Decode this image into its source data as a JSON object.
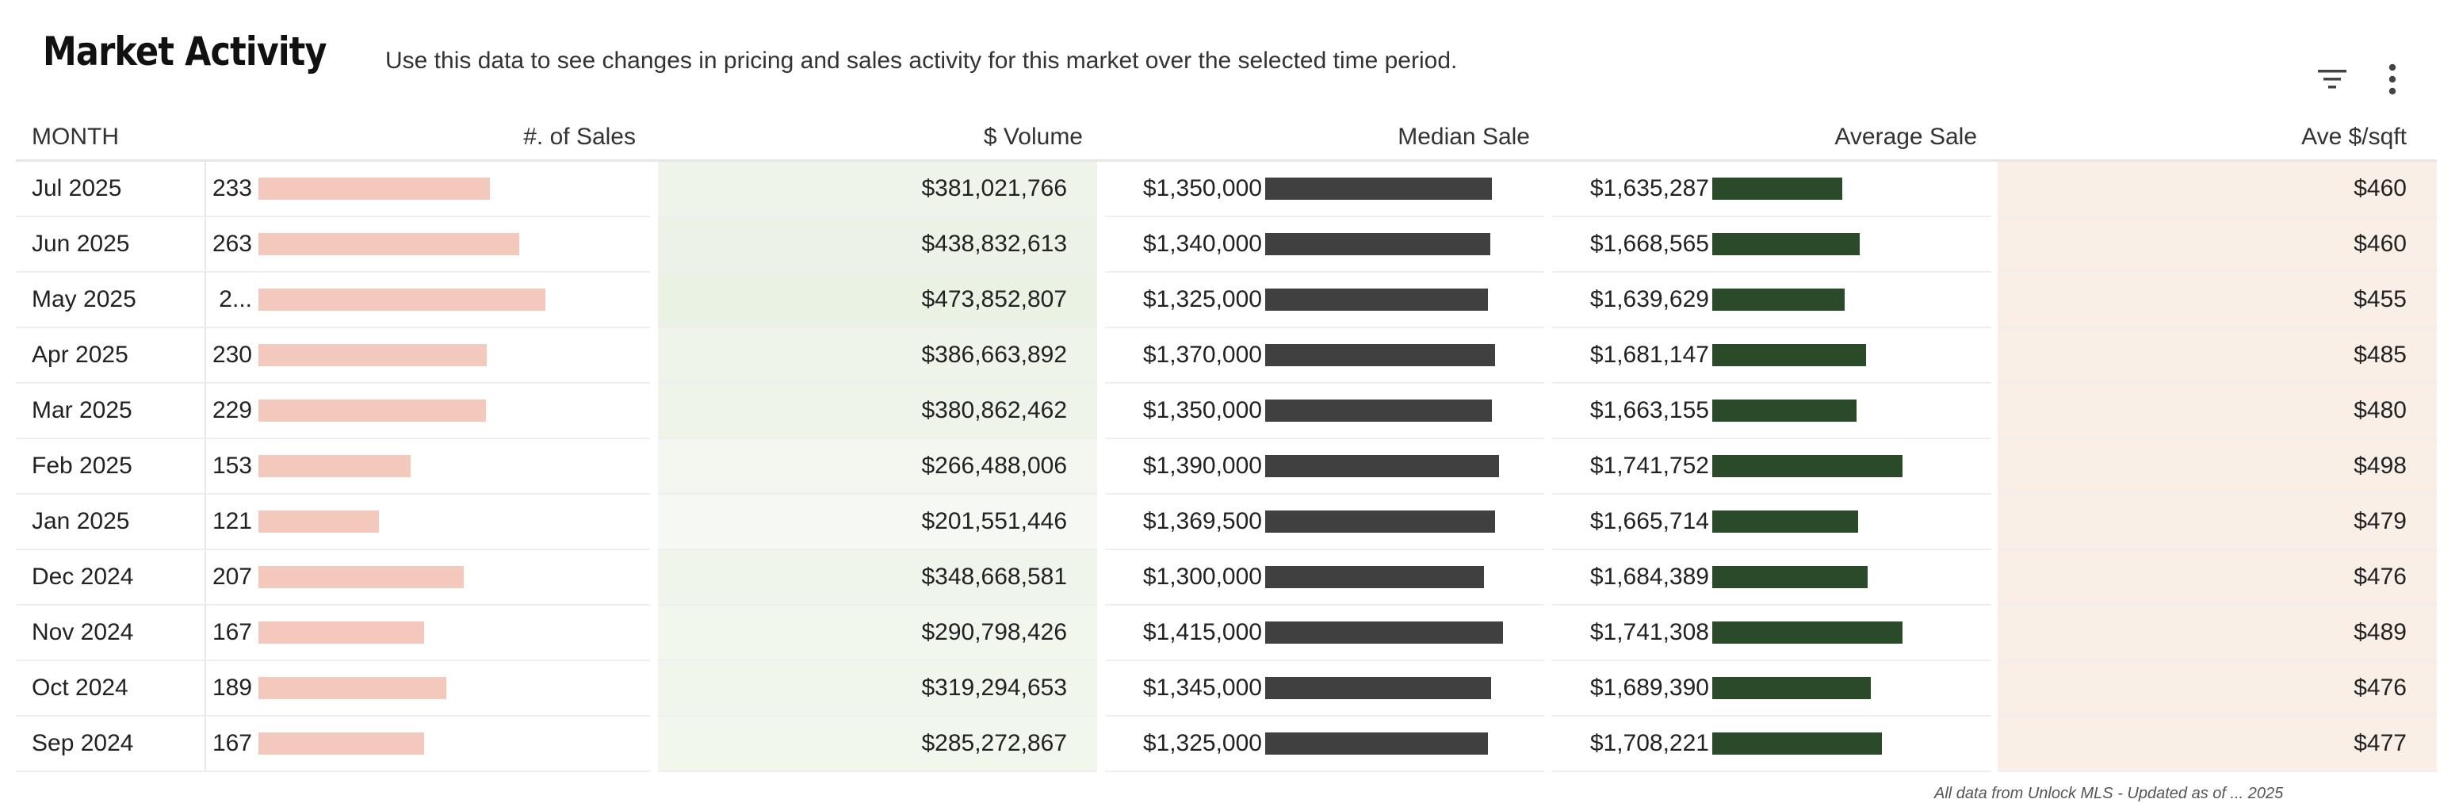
{
  "header": {
    "title": "Market Activity",
    "subtitle": "Use this data to see changes in pricing and sales activity for this market over the selected time period."
  },
  "toolbar": {
    "filter_icon": "filter-icon",
    "more_icon": "more-vert-icon"
  },
  "table": {
    "columns": [
      "MONTH",
      "#. of Sales",
      "$ Volume",
      "Median Sale",
      "Average Sale",
      "Ave $/sqft"
    ],
    "rows": [
      {
        "month": "Jul 2025",
        "sales": "233",
        "sales_value": 233,
        "volume": "$381,021,766",
        "median": "$1,350,000",
        "median_value": 1350000,
        "average": "$1,635,287",
        "average_value": 1635287,
        "sqft": "$460"
      },
      {
        "month": "Jun 2025",
        "sales": "263",
        "sales_value": 263,
        "volume": "$438,832,613",
        "median": "$1,340,000",
        "median_value": 1340000,
        "average": "$1,668,565",
        "average_value": 1668565,
        "sqft": "$460"
      },
      {
        "month": "May 2025",
        "sales": "2...",
        "sales_value": 289,
        "volume": "$473,852,807",
        "median": "$1,325,000",
        "median_value": 1325000,
        "average": "$1,639,629",
        "average_value": 1639629,
        "sqft": "$455"
      },
      {
        "month": "Apr 2025",
        "sales": "230",
        "sales_value": 230,
        "volume": "$386,663,892",
        "median": "$1,370,000",
        "median_value": 1370000,
        "average": "$1,681,147",
        "average_value": 1681147,
        "sqft": "$485"
      },
      {
        "month": "Mar 2025",
        "sales": "229",
        "sales_value": 229,
        "volume": "$380,862,462",
        "median": "$1,350,000",
        "median_value": 1350000,
        "average": "$1,663,155",
        "average_value": 1663155,
        "sqft": "$480"
      },
      {
        "month": "Feb 2025",
        "sales": "153",
        "sales_value": 153,
        "volume": "$266,488,006",
        "median": "$1,390,000",
        "median_value": 1390000,
        "average": "$1,741,752",
        "average_value": 1741752,
        "sqft": "$498"
      },
      {
        "month": "Jan 2025",
        "sales": "121",
        "sales_value": 121,
        "volume": "$201,551,446",
        "median": "$1,369,500",
        "median_value": 1369500,
        "average": "$1,665,714",
        "average_value": 1665714,
        "sqft": "$479"
      },
      {
        "month": "Dec 2024",
        "sales": "207",
        "sales_value": 207,
        "volume": "$348,668,581",
        "median": "$1,300,000",
        "median_value": 1300000,
        "average": "$1,684,389",
        "average_value": 1684389,
        "sqft": "$476"
      },
      {
        "month": "Nov 2024",
        "sales": "167",
        "sales_value": 167,
        "volume": "$290,798,426",
        "median": "$1,415,000",
        "median_value": 1415000,
        "average": "$1,741,308",
        "average_value": 1741308,
        "sqft": "$489"
      },
      {
        "month": "Oct 2024",
        "sales": "189",
        "sales_value": 189,
        "volume": "$319,294,653",
        "median": "$1,345,000",
        "median_value": 1345000,
        "average": "$1,689,390",
        "average_value": 1689390,
        "sqft": "$476"
      },
      {
        "month": "Sep 2024",
        "sales": "167",
        "sales_value": 167,
        "volume": "$285,272,867",
        "median": "$1,325,000",
        "median_value": 1325000,
        "average": "$1,708,221",
        "average_value": 1708221,
        "sqft": "$477"
      }
    ]
  },
  "colors": {
    "sales_bar": "#f4c9bd",
    "median_bar": "#404040",
    "average_bar": "#2b4a2a",
    "volume_heat": "#eaf2e4",
    "sqft_heat": "#faefe6"
  },
  "footer": {
    "note": "All data from Unlock MLS - Updated as of ... 2025"
  }
}
